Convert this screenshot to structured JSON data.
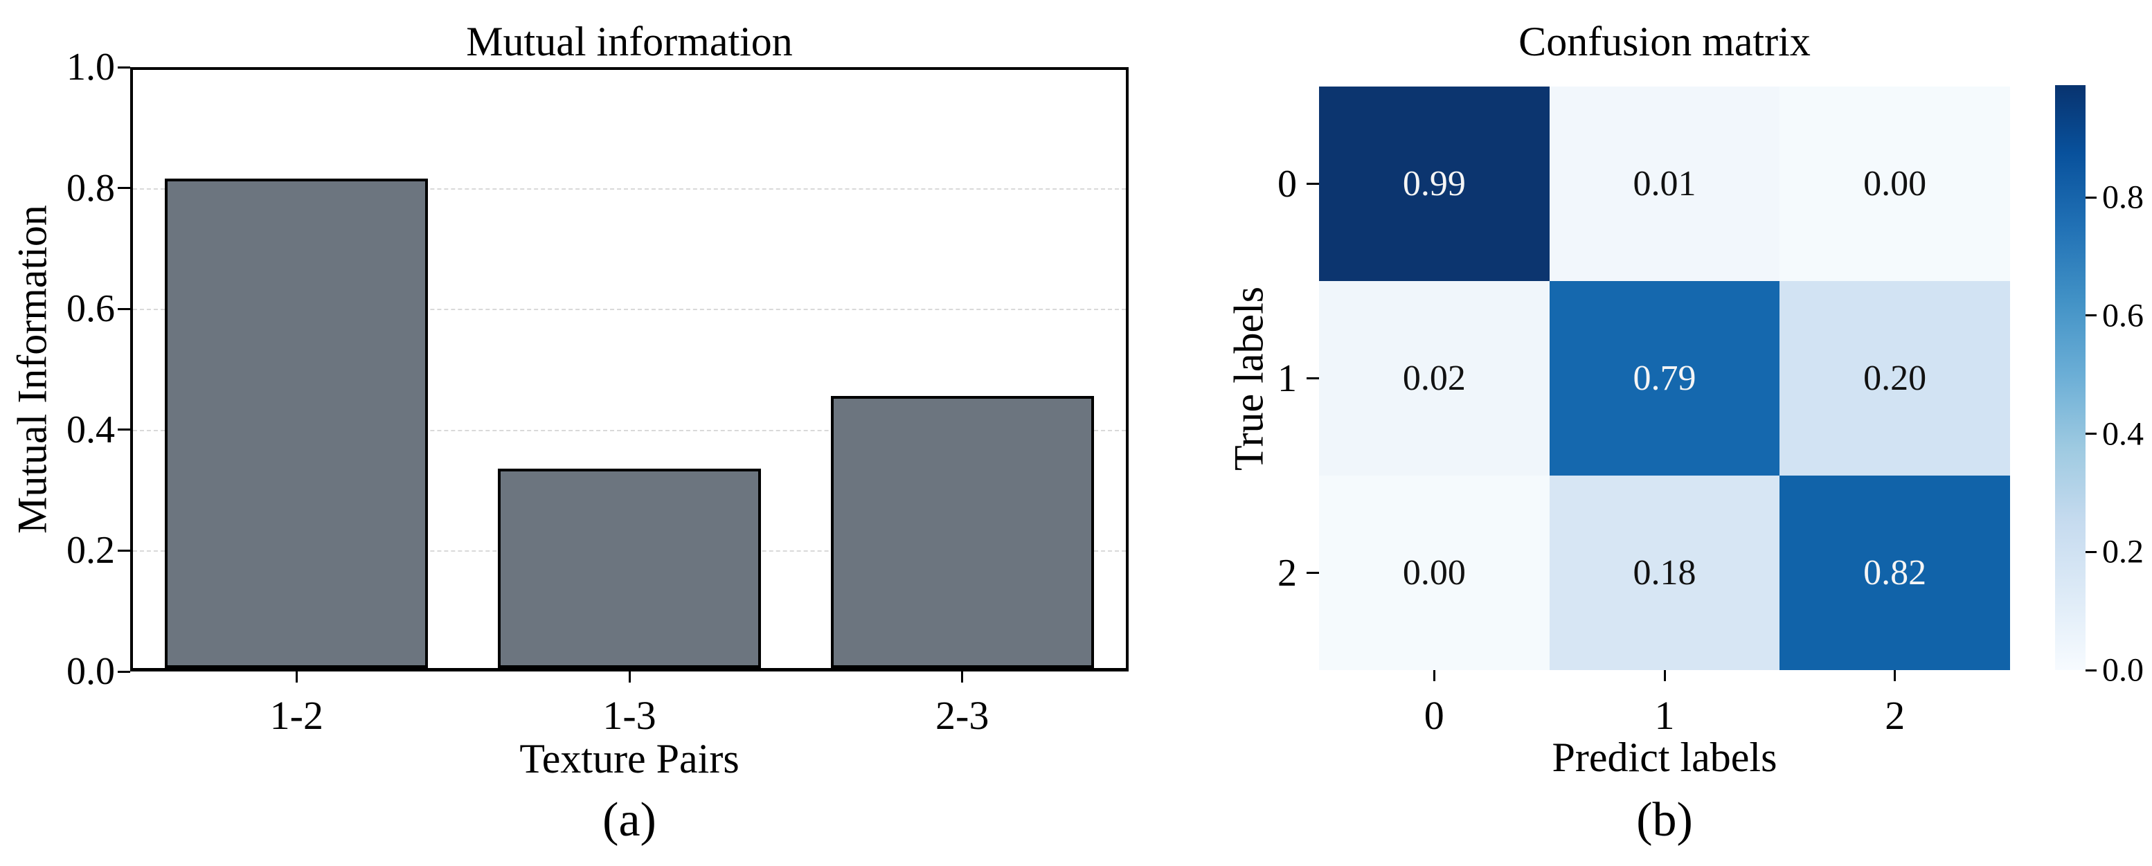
{
  "chart_data": [
    {
      "type": "bar",
      "title": "Mutual information",
      "xlabel": "Texture Pairs",
      "ylabel": "Mutual Information",
      "caption": "(a)",
      "categories": [
        "1-2",
        "1-3",
        "2-3"
      ],
      "values": [
        0.81,
        0.33,
        0.45
      ],
      "ylim": [
        0.0,
        1.0
      ],
      "ytick_labels": [
        "1.0",
        "0.8",
        "0.6",
        "0.4",
        "0.2",
        "0.0"
      ],
      "ytick_values": [
        1.0,
        0.8,
        0.6,
        0.4,
        0.2,
        0.0
      ],
      "grid": "horizontal-dashed",
      "bar_color": "#6c757f",
      "bar_edge_color": "#000000"
    },
    {
      "type": "heatmap",
      "title": "Confusion matrix",
      "xlabel": "Predict labels",
      "ylabel": "True labels",
      "caption": "(b)",
      "x_tick_labels": [
        "0",
        "1",
        "2"
      ],
      "y_tick_labels": [
        "0",
        "1",
        "2"
      ],
      "values": [
        [
          0.99,
          0.01,
          0.0
        ],
        [
          0.02,
          0.79,
          0.2
        ],
        [
          0.0,
          0.18,
          0.82
        ]
      ],
      "value_labels": [
        [
          "0.99",
          "0.01",
          "0.00"
        ],
        [
          "0.02",
          "0.79",
          "0.20"
        ],
        [
          "0.00",
          "0.18",
          "0.82"
        ]
      ],
      "cell_colors": [
        [
          "#0c356f",
          "#f2f7fc",
          "#f5fafd"
        ],
        [
          "#f0f6fb",
          "#1568ae",
          "#d2e3f3"
        ],
        [
          "#f5fafd",
          "#d7e6f4",
          "#1163a9"
        ]
      ],
      "cell_text_light": "#f5f5f5",
      "cell_text_dark": "#111111",
      "colormap": "Blues",
      "colorbar_range": [
        0.0,
        0.99
      ],
      "colorbar_tick_labels": [
        "0.8",
        "0.6",
        "0.4",
        "0.2",
        "0.0"
      ],
      "colorbar_tick_values": [
        0.8,
        0.6,
        0.4,
        0.2,
        0.0
      ],
      "colorbar_gradient_stops": [
        {
          "pos": 0.0,
          "color": "#f7fbff"
        },
        {
          "pos": 0.126,
          "color": "#deebf7"
        },
        {
          "pos": 0.253,
          "color": "#c6dbef"
        },
        {
          "pos": 0.379,
          "color": "#9ecae1"
        },
        {
          "pos": 0.505,
          "color": "#6baed6"
        },
        {
          "pos": 0.631,
          "color": "#4292c6"
        },
        {
          "pos": 0.758,
          "color": "#2171b5"
        },
        {
          "pos": 0.884,
          "color": "#08519c"
        },
        {
          "pos": 1.0,
          "color": "#08336f"
        }
      ]
    }
  ]
}
